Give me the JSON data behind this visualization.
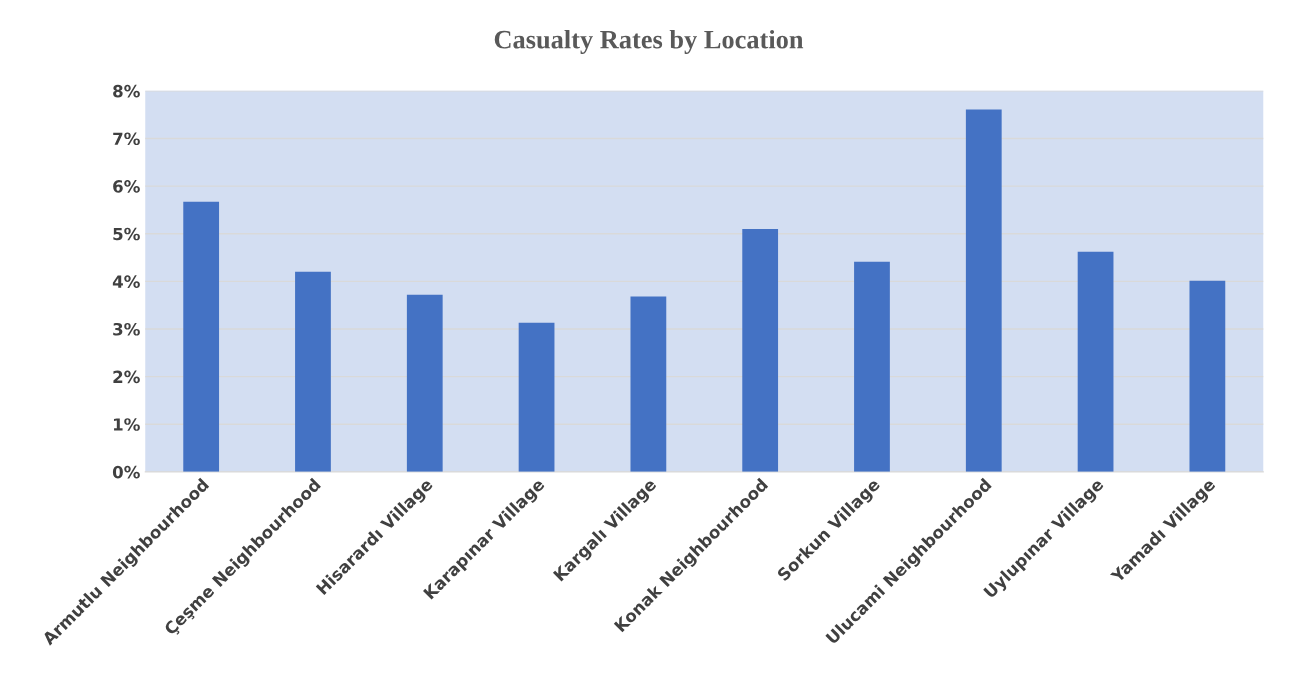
{
  "chart_data": {
    "type": "bar",
    "title": "Casualty Rates by Location",
    "categories": [
      "Armutlu Neighbourhood",
      "Çeşme Neighbourhood",
      "Hisarardı Village",
      "Karapınar Village",
      "Kargalı Village",
      "Konak Neighbourhood",
      "Sorkun Village",
      "Ulucami Neighbourhood",
      "Uylupınar Village",
      "Yamadı Village"
    ],
    "values": [
      5.67,
      4.2,
      3.72,
      3.13,
      3.68,
      5.1,
      4.41,
      7.61,
      4.62,
      4.01
    ],
    "color": "#4472c4",
    "ylim": [
      0,
      8
    ],
    "yticks": [
      {
        "value": 0,
        "label": "0%"
      },
      {
        "value": 1,
        "label": "1%"
      },
      {
        "value": 2,
        "label": "2%"
      },
      {
        "value": 3,
        "label": "3%"
      },
      {
        "value": 4,
        "label": "4%"
      },
      {
        "value": 5,
        "label": "5%"
      },
      {
        "value": 6,
        "label": "6%"
      },
      {
        "value": 7,
        "label": "7%"
      },
      {
        "value": 8,
        "label": "8%"
      }
    ],
    "grid": "y",
    "legend": false
  }
}
